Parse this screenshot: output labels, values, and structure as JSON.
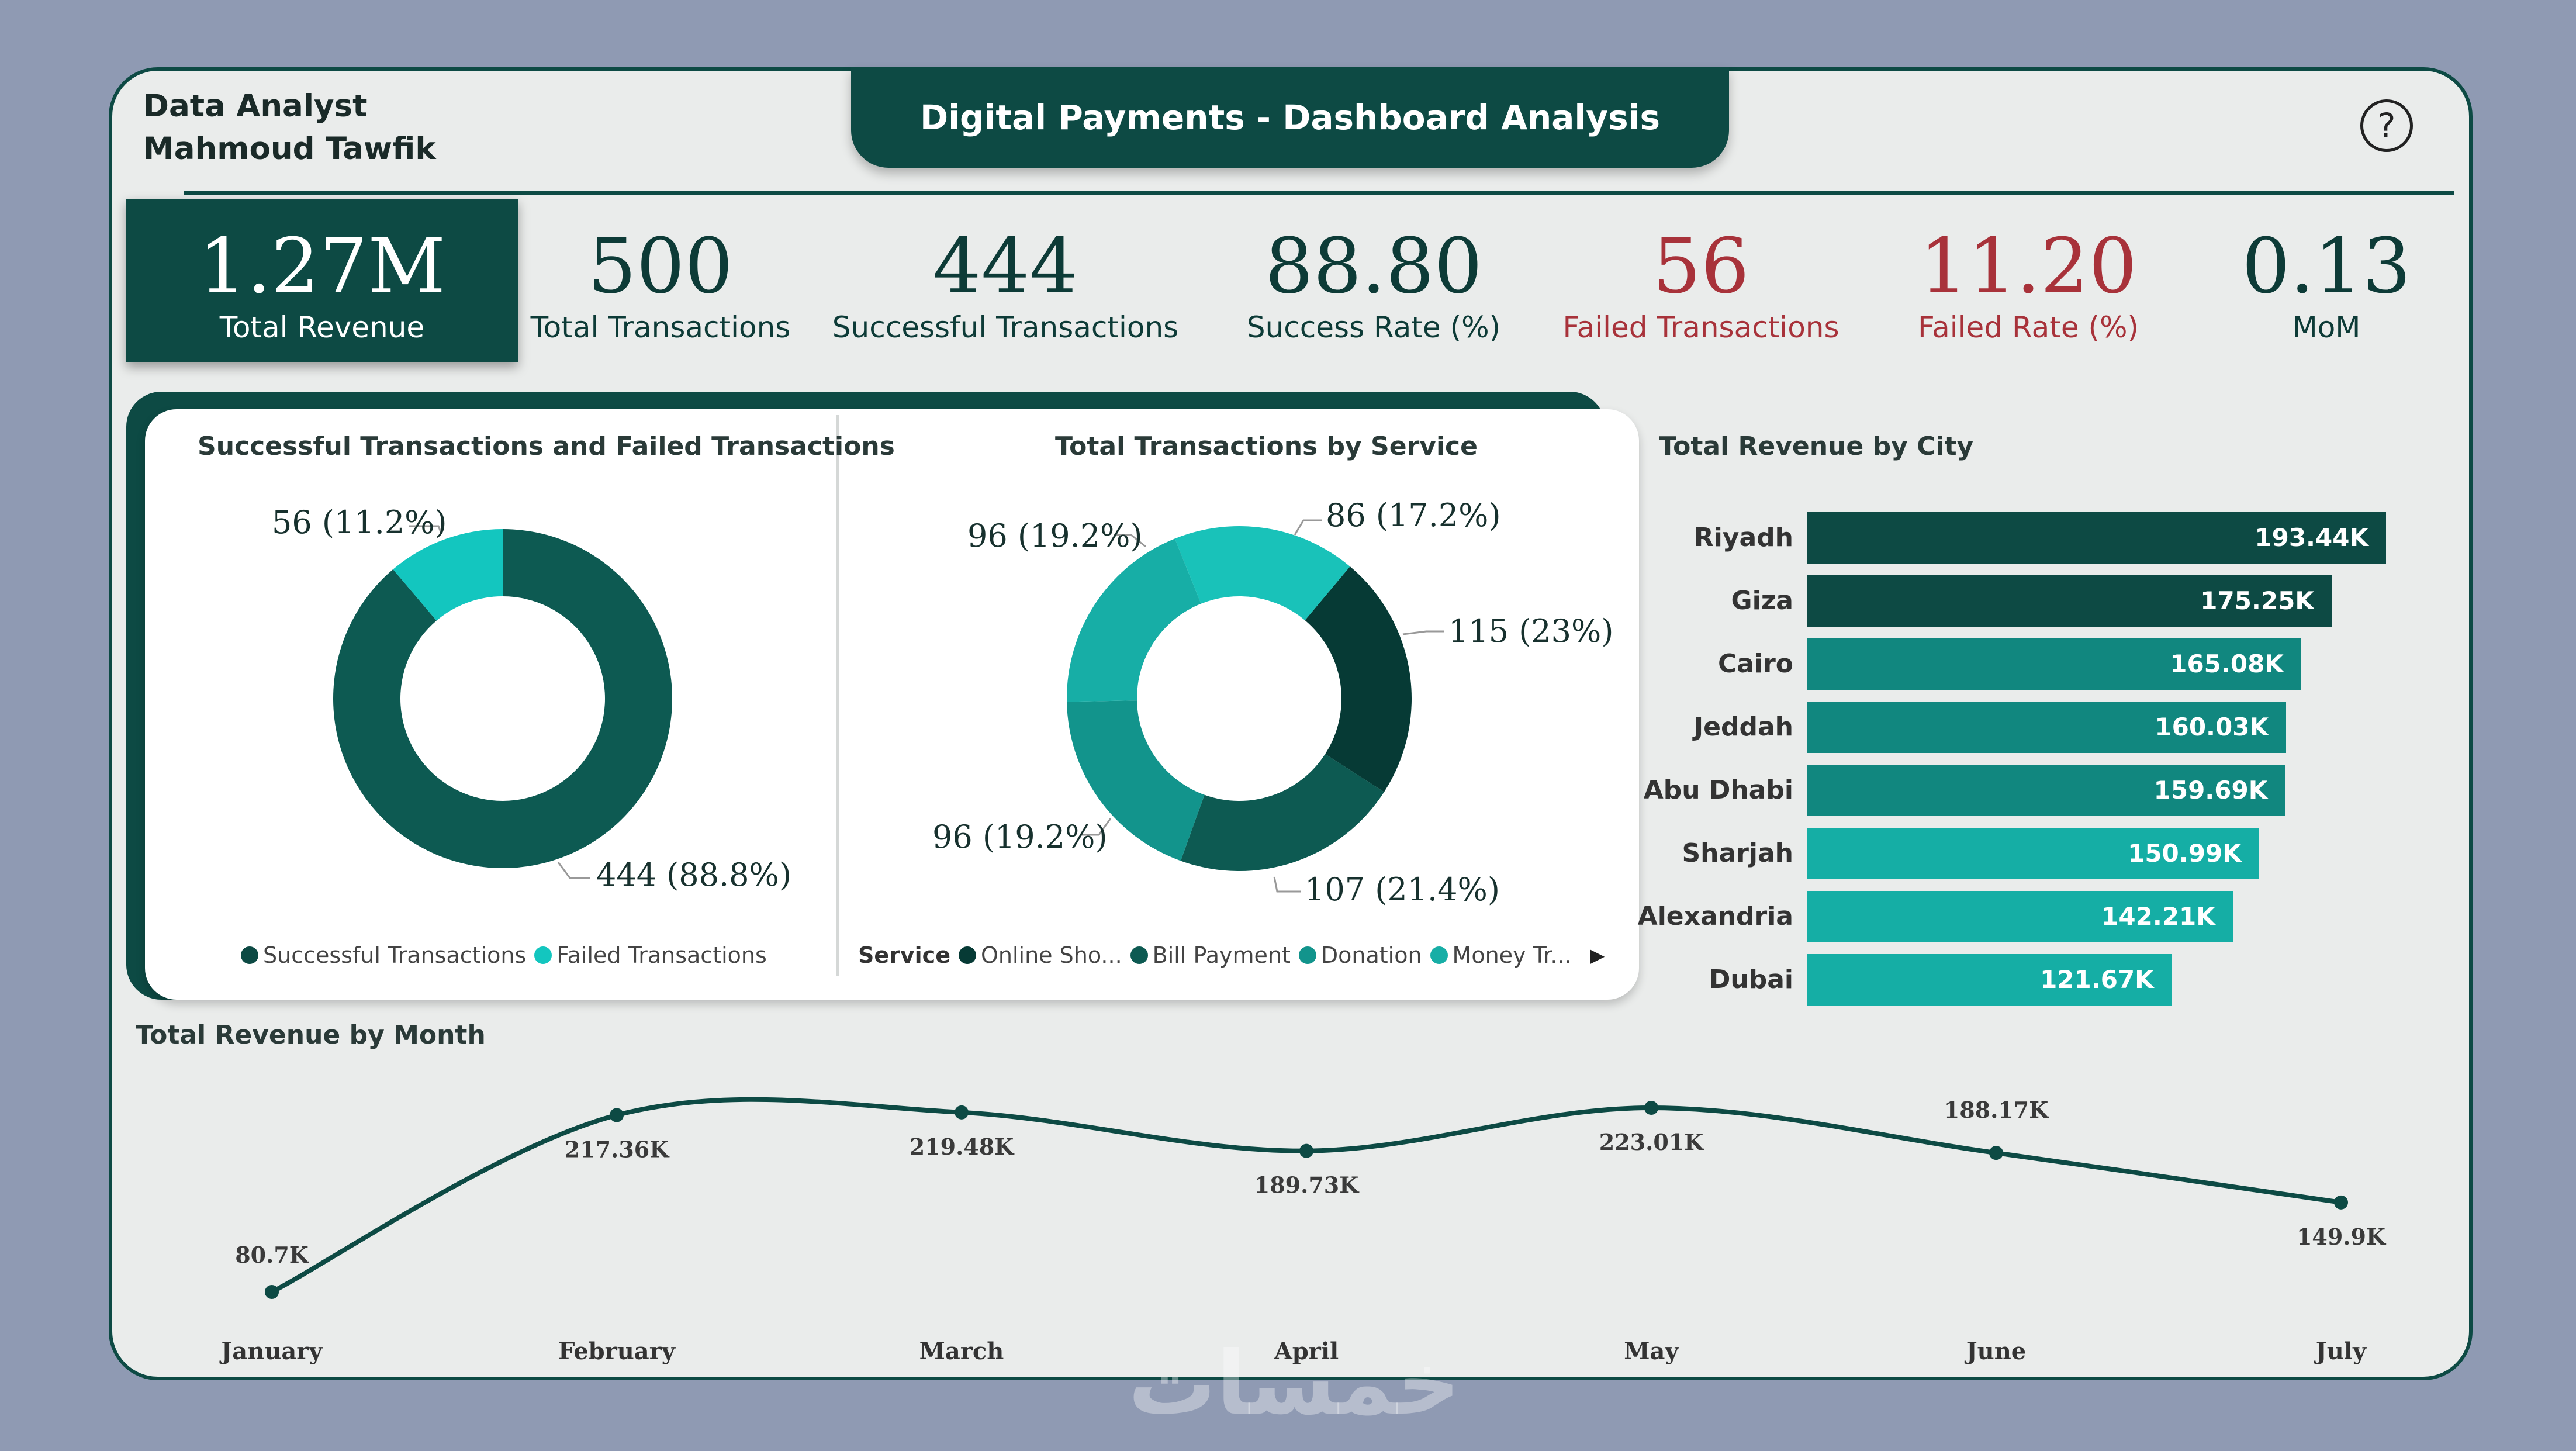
{
  "header": {
    "author_line1": "Data Analyst",
    "author_line2": "Mahmoud Tawfik",
    "title": "Digital Payments - Dashboard Analysis",
    "help_icon": "?"
  },
  "kpis": [
    {
      "value": "1.27M",
      "label": "Total Revenue"
    },
    {
      "value": "500",
      "label": "Total Transactions"
    },
    {
      "value": "444",
      "label": "Successful Transactions"
    },
    {
      "value": "88.80",
      "label": "Success Rate (%)"
    },
    {
      "value": "56",
      "label": "Failed Transactions"
    },
    {
      "value": "11.20",
      "label": "Failed Rate (%)"
    },
    {
      "value": "0.13",
      "label": "MoM"
    }
  ],
  "colors": {
    "dark": "#0d4a44",
    "failed_red": "#a8323a",
    "teal": "#13c6bf",
    "card_bg": "#eaeceb"
  },
  "chart_data": [
    {
      "type": "pie",
      "title": "Successful Transactions and Failed Transactions",
      "categories": [
        "Successful Transactions",
        "Failed Transactions"
      ],
      "values": [
        444,
        56
      ],
      "data_labels": [
        "444 (88.8%)",
        "56 (11.2%)"
      ],
      "colors": [
        "#0d5a52",
        "#13c6bf"
      ],
      "legend_placement": "bottom"
    },
    {
      "type": "pie",
      "title": "Total Transactions by Service",
      "legend_title": "Service",
      "legend_items": [
        "Online Sho...",
        "Bill Payment",
        "Donation",
        "Money Tr..."
      ],
      "values": [
        115,
        107,
        96,
        96,
        86
      ],
      "data_labels": [
        "115 (23%)",
        "107 (21.4%)",
        "96 (19.2%)",
        "96 (19.2%)",
        "86 (17.2%)"
      ],
      "colors": [
        "#063a35",
        "#0d5a52",
        "#12948c",
        "#17aea6",
        "#19c2b9"
      ],
      "legend_placement": "bottom"
    },
    {
      "type": "bar",
      "title": "Total Revenue by City",
      "categories": [
        "Riyadh",
        "Giza",
        "Cairo",
        "Jeddah",
        "Abu Dhabi",
        "Sharjah",
        "Alexandria",
        "Dubai"
      ],
      "values": [
        193.44,
        175.25,
        165.08,
        160.03,
        159.69,
        150.99,
        142.21,
        121.67
      ],
      "data_labels": [
        "193.44K",
        "175.25K",
        "165.08K",
        "160.03K",
        "159.69K",
        "150.99K",
        "142.21K",
        "121.67K"
      ],
      "colors": [
        "#0d4a44",
        "#0d4a44",
        "#11877f",
        "#11877f",
        "#11877f",
        "#15aea5",
        "#15aea5",
        "#15aea5"
      ],
      "unit": "K"
    },
    {
      "type": "line",
      "title": "Total Revenue by Month",
      "categories": [
        "January",
        "February",
        "March",
        "April",
        "May",
        "June",
        "July"
      ],
      "values": [
        80.7,
        217.36,
        219.48,
        189.73,
        223.01,
        188.17,
        149.9
      ],
      "data_labels": [
        "80.7K",
        "217.36K",
        "219.48K",
        "189.73K",
        "223.01K",
        "188.17K",
        "149.9K"
      ],
      "unit": "K"
    }
  ],
  "watermark": "خمسات"
}
